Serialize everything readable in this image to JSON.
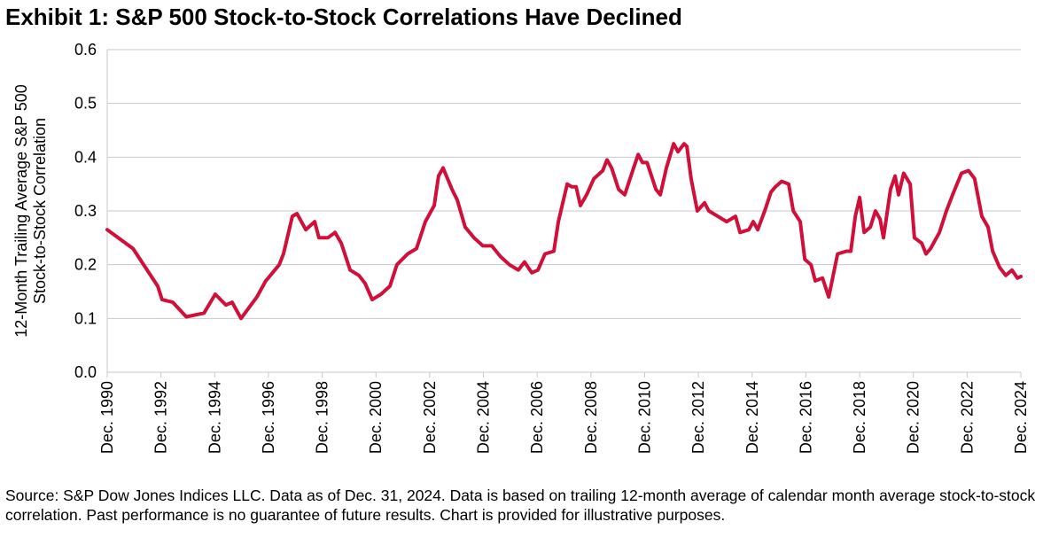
{
  "chart_data": {
    "type": "line",
    "title": "Exhibit 1: S&P 500 Stock-to-Stock Correlations Have Declined",
    "y_label": [
      "12-Month Trailing Average S&P 500",
      "Stock-to-Stock Correlation"
    ],
    "source": "Source: S&P Dow Jones Indices LLC. Data as of Dec. 31, 2024. Data is based on trailing 12-month average of calendar month average stock-to-stock correlation. Past performance is no guarantee of future results. Chart is provided for illustrative purposes.",
    "color": "#d0103a",
    "grid": true,
    "x": [
      1991.0,
      1991.96,
      1992.88,
      1993.04,
      1993.44,
      1993.94,
      1994.6,
      1995.02,
      1995.42,
      1995.65,
      1995.98,
      1996.57,
      1996.9,
      1997.07,
      1997.4,
      1997.56,
      1997.89,
      1998.06,
      1998.39,
      1998.72,
      1998.88,
      1999.21,
      1999.48,
      1999.71,
      2000.04,
      2000.37,
      2000.6,
      2000.86,
      2001.19,
      2001.52,
      2001.78,
      2002.18,
      2002.51,
      2002.84,
      2003.17,
      2003.33,
      2003.5,
      2003.83,
      2004.03,
      2004.32,
      2004.65,
      2004.98,
      2005.31,
      2005.64,
      2005.97,
      2006.3,
      2006.53,
      2006.8,
      2007.03,
      2007.29,
      2007.62,
      2007.79,
      2008.12,
      2008.28,
      2008.45,
      2008.61,
      2008.84,
      2009.11,
      2009.44,
      2009.6,
      2009.77,
      2010.03,
      2010.26,
      2010.59,
      2010.76,
      2010.92,
      2011.09,
      2011.42,
      2011.58,
      2011.81,
      2012.08,
      2012.24,
      2012.47,
      2012.57,
      2012.73,
      2012.96,
      2013.23,
      2013.39,
      2013.72,
      2014.05,
      2014.38,
      2014.55,
      2014.88,
      2015.04,
      2015.21,
      2015.47,
      2015.7,
      2015.87,
      2016.1,
      2016.36,
      2016.53,
      2016.79,
      2016.96,
      2017.19,
      2017.35,
      2017.62,
      2017.85,
      2018.18,
      2018.51,
      2018.67,
      2018.84,
      2019.0,
      2019.17,
      2019.4,
      2019.59,
      2019.76,
      2019.89,
      2020.15,
      2020.32,
      2020.45,
      2020.64,
      2020.88,
      2021.04,
      2021.31,
      2021.47,
      2021.64,
      2021.97,
      2022.23,
      2022.46,
      2022.79,
      2023.05,
      2023.28,
      2023.55,
      2023.78,
      2023.95,
      2024.21,
      2024.44,
      2024.67,
      2024.87,
      2025.0
    ],
    "values": [
      0.265,
      0.23,
      0.16,
      0.135,
      0.13,
      0.103,
      0.11,
      0.145,
      0.125,
      0.13,
      0.1,
      0.14,
      0.17,
      0.18,
      0.2,
      0.22,
      0.29,
      0.295,
      0.265,
      0.28,
      0.25,
      0.25,
      0.26,
      0.24,
      0.19,
      0.18,
      0.165,
      0.135,
      0.145,
      0.16,
      0.2,
      0.22,
      0.23,
      0.28,
      0.31,
      0.365,
      0.38,
      0.34,
      0.32,
      0.27,
      0.25,
      0.235,
      0.235,
      0.215,
      0.2,
      0.19,
      0.205,
      0.185,
      0.19,
      0.22,
      0.225,
      0.28,
      0.35,
      0.345,
      0.345,
      0.31,
      0.33,
      0.36,
      0.375,
      0.395,
      0.38,
      0.34,
      0.33,
      0.38,
      0.405,
      0.39,
      0.39,
      0.34,
      0.33,
      0.38,
      0.425,
      0.41,
      0.425,
      0.42,
      0.36,
      0.3,
      0.315,
      0.3,
      0.29,
      0.28,
      0.29,
      0.26,
      0.265,
      0.28,
      0.265,
      0.3,
      0.335,
      0.345,
      0.355,
      0.35,
      0.3,
      0.28,
      0.21,
      0.2,
      0.17,
      0.175,
      0.14,
      0.22,
      0.225,
      0.225,
      0.29,
      0.325,
      0.26,
      0.27,
      0.3,
      0.285,
      0.25,
      0.34,
      0.365,
      0.33,
      0.37,
      0.35,
      0.25,
      0.24,
      0.22,
      0.23,
      0.26,
      0.3,
      0.33,
      0.37,
      0.375,
      0.36,
      0.29,
      0.27,
      0.225,
      0.195,
      0.18,
      0.19,
      0.175,
      0.178
    ],
    "xlim": [
      1991,
      2025
    ],
    "ylim": [
      0,
      0.6
    ],
    "yticks": [
      {
        "value": 0,
        "label": "0.0"
      },
      0.1,
      0.2,
      0.3,
      0.4,
      0.5,
      0.6
    ],
    "xticks": [
      {
        "value": 1991,
        "label": "Dec. 1990"
      },
      {
        "value": 1993,
        "label": "Dec. 1992"
      },
      {
        "value": 1995,
        "label": "Dec. 1994"
      },
      {
        "value": 1997,
        "label": "Dec. 1996"
      },
      {
        "value": 1999,
        "label": "Dec. 1998"
      },
      {
        "value": 2001,
        "label": "Dec. 2000"
      },
      {
        "value": 2003,
        "label": "Dec. 2002"
      },
      {
        "value": 2005,
        "label": "Dec. 2004"
      },
      {
        "value": 2007,
        "label": "Dec. 2006"
      },
      {
        "value": 2009,
        "label": "Dec. 2008"
      },
      {
        "value": 2011,
        "label": "Dec. 2010"
      },
      {
        "value": 2013,
        "label": "Dec. 2012"
      },
      {
        "value": 2015,
        "label": "Dec. 2014"
      },
      {
        "value": 2017,
        "label": "Dec. 2016"
      },
      {
        "value": 2019,
        "label": "Dec. 2018"
      },
      {
        "value": 2021,
        "label": "Dec. 2020"
      },
      {
        "value": 2023,
        "label": "Dec. 2022"
      },
      {
        "value": 2025,
        "label": "Dec. 2024"
      }
    ]
  }
}
